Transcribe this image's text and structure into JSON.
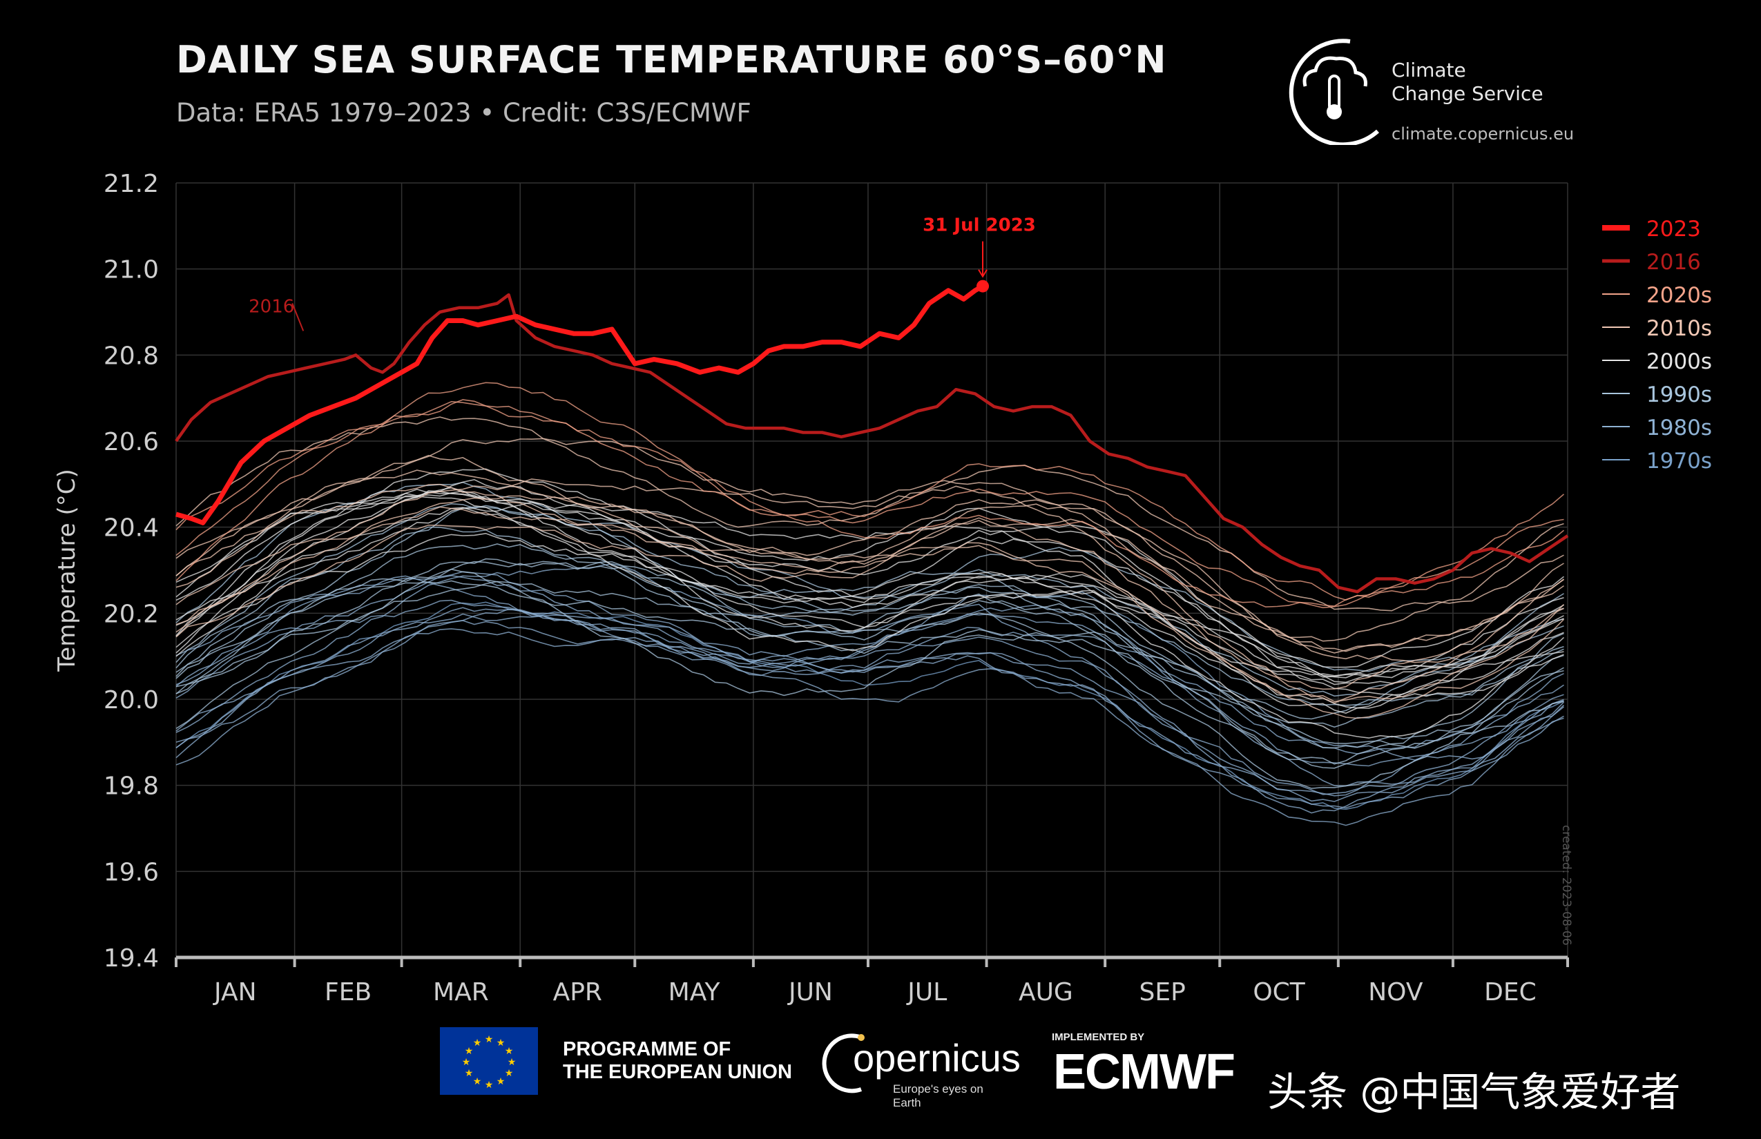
{
  "header": {
    "title": "DAILY SEA SURFACE TEMPERATURE 60°S–60°N",
    "subtitle": "Data: ERA5 1979–2023 • Credit: C3S/ECMWF"
  },
  "brand": {
    "name_line1": "Climate",
    "name_line2": "Change Service",
    "url": "climate.copernicus.eu"
  },
  "created_note": "created: 2023-08-06",
  "footer": {
    "eu_line1": "PROGRAMME OF",
    "eu_line2": "THE EUROPEAN UNION",
    "copernicus_word": "opernicus",
    "copernicus_tagline": "Europe's eyes on Earth",
    "implemented_by": "IMPLEMENTED BY",
    "ecmwf": "ECMWF",
    "watermark": "头条 @中国气象爱好者"
  },
  "colors": {
    "y2023": "#ff1a1a",
    "y2016": "#b81c1c",
    "grid": "#333333",
    "axis": "#bbbbbb"
  },
  "chart_data": {
    "type": "line",
    "title": "DAILY SEA SURFACE TEMPERATURE 60°S–60°N",
    "ylabel": "Temperature (°C)",
    "xlabel": "",
    "ylim": [
      19.4,
      21.2
    ],
    "yticks": [
      "19.4",
      "19.6",
      "19.8",
      "20.0",
      "20.2",
      "20.4",
      "20.6",
      "20.8",
      "21.0",
      "21.2"
    ],
    "xlim": [
      1,
      365
    ],
    "month_labels": [
      "JAN",
      "FEB",
      "MAR",
      "APR",
      "MAY",
      "JUN",
      "JUL",
      "AUG",
      "SEP",
      "OCT",
      "NOV",
      "DEC"
    ],
    "month_starts": [
      1,
      32,
      60,
      91,
      121,
      152,
      182,
      213,
      244,
      274,
      305,
      335,
      365
    ],
    "grid": true,
    "legend": {
      "placement": "right",
      "entries": [
        {
          "label": "2023",
          "color": "#ff1a1a",
          "weight": "bold"
        },
        {
          "label": "2016",
          "color": "#b81c1c",
          "weight": "medium"
        },
        {
          "label": "2020s",
          "color": "#f4a48a",
          "weight": "thin"
        },
        {
          "label": "2010s",
          "color": "#f2c9b6",
          "weight": "thin"
        },
        {
          "label": "2000s",
          "color": "#e6e6e6",
          "weight": "thin"
        },
        {
          "label": "1990s",
          "color": "#a9c6de",
          "weight": "thin"
        },
        {
          "label": "1980s",
          "color": "#8fb2d4",
          "weight": "thin"
        },
        {
          "label": "1970s",
          "color": "#7aa2cb",
          "weight": "thin"
        }
      ]
    },
    "highlight_series": [
      {
        "name": "2023",
        "color": "#ff1a1a",
        "x": [
          1,
          5,
          8,
          12,
          18,
          24,
          30,
          36,
          42,
          48,
          54,
          60,
          64,
          68,
          72,
          76,
          80,
          85,
          90,
          95,
          100,
          105,
          110,
          115,
          118,
          121,
          126,
          132,
          138,
          143,
          148,
          152,
          156,
          160,
          165,
          170,
          175,
          180,
          185,
          190,
          194,
          198,
          203,
          207,
          210,
          212
        ],
        "y": [
          20.43,
          20.42,
          20.41,
          20.46,
          20.55,
          20.6,
          20.63,
          20.66,
          20.68,
          20.7,
          20.73,
          20.76,
          20.78,
          20.84,
          20.88,
          20.88,
          20.87,
          20.88,
          20.89,
          20.87,
          20.86,
          20.85,
          20.85,
          20.86,
          20.82,
          20.78,
          20.79,
          20.78,
          20.76,
          20.77,
          20.76,
          20.78,
          20.81,
          20.82,
          20.82,
          20.83,
          20.83,
          20.82,
          20.85,
          20.84,
          20.87,
          20.92,
          20.95,
          20.93,
          20.95,
          20.96
        ]
      },
      {
        "name": "2016",
        "color": "#b81c1c",
        "x": [
          1,
          5,
          10,
          15,
          20,
          25,
          30,
          35,
          40,
          45,
          48,
          52,
          55,
          58,
          62,
          66,
          70,
          75,
          80,
          85,
          88,
          90,
          95,
          100,
          105,
          110,
          115,
          120,
          125,
          130,
          135,
          140,
          145,
          150,
          155,
          160,
          165,
          170,
          175,
          180,
          185,
          190,
          195,
          200,
          205,
          210,
          215,
          220,
          225,
          230,
          235,
          240,
          245,
          250,
          255,
          260,
          265,
          270,
          275,
          280,
          285,
          290,
          295,
          300,
          305,
          310,
          315,
          320,
          325,
          330,
          335,
          340,
          345,
          350,
          355,
          360,
          365
        ],
        "y": [
          20.6,
          20.65,
          20.69,
          20.71,
          20.73,
          20.75,
          20.76,
          20.77,
          20.78,
          20.79,
          20.8,
          20.77,
          20.76,
          20.78,
          20.83,
          20.87,
          20.9,
          20.91,
          20.91,
          20.92,
          20.94,
          20.88,
          20.84,
          20.82,
          20.81,
          20.8,
          20.78,
          20.77,
          20.76,
          20.73,
          20.7,
          20.67,
          20.64,
          20.63,
          20.63,
          20.63,
          20.62,
          20.62,
          20.61,
          20.62,
          20.63,
          20.65,
          20.67,
          20.68,
          20.72,
          20.71,
          20.68,
          20.67,
          20.68,
          20.68,
          20.66,
          20.6,
          20.57,
          20.56,
          20.54,
          20.53,
          20.52,
          20.47,
          20.42,
          20.4,
          20.36,
          20.33,
          20.31,
          20.3,
          20.26,
          20.25,
          20.28,
          20.28,
          20.27,
          20.28,
          20.3,
          20.34,
          20.35,
          20.34,
          20.32,
          20.35,
          20.38
        ]
      }
    ],
    "annotations": [
      {
        "text": "31 Jul 2023",
        "x": 212,
        "y": 20.96,
        "color": "#ff1a1a"
      },
      {
        "text": "2016",
        "x": 35,
        "y": 20.84,
        "color": "#b81c1c"
      }
    ],
    "background_years": {
      "count": 43,
      "from": 1979,
      "to": 2022,
      "note": "thin lines coloured by decade; mean ≈20.05 in 1979 rising to ≈20.45 in 2022",
      "climatology_x": [
        1,
        30,
        60,
        75,
        90,
        120,
        150,
        180,
        210,
        240,
        270,
        290,
        305,
        320,
        340,
        365
      ],
      "climatology_y": [
        20.1,
        20.27,
        20.37,
        20.4,
        20.38,
        20.32,
        20.22,
        20.2,
        20.28,
        20.24,
        20.08,
        19.98,
        19.95,
        19.97,
        20.02,
        20.15
      ]
    }
  }
}
